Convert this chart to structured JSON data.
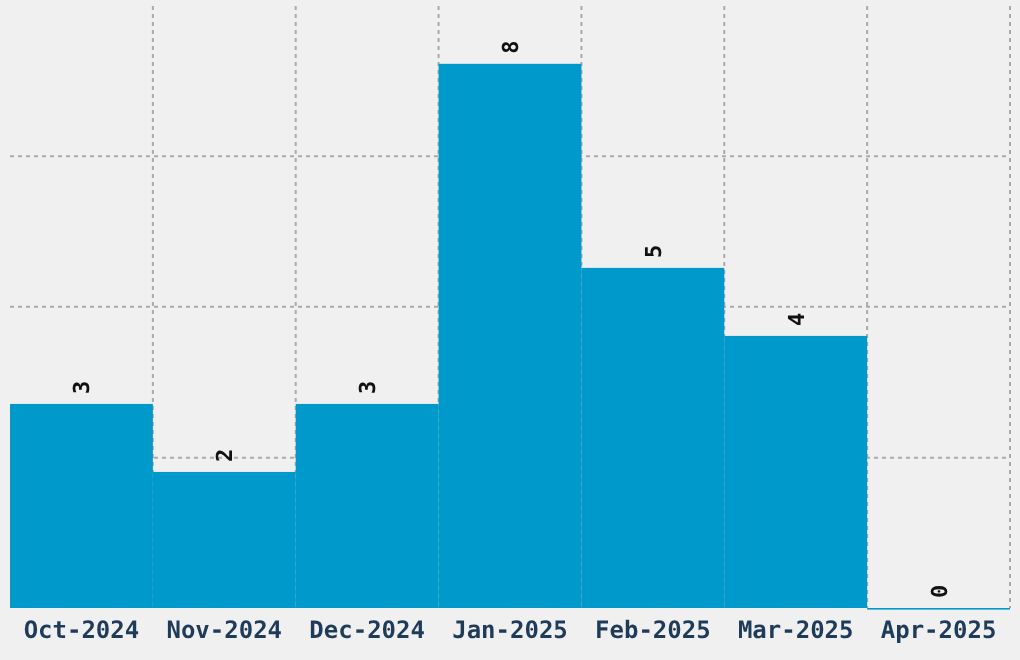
{
  "chart_data": {
    "type": "bar",
    "categories": [
      "Oct-2024",
      "Nov-2024",
      "Dec-2024",
      "Jan-2025",
      "Feb-2025",
      "Mar-2025",
      "Apr-2025"
    ],
    "values": [
      3,
      2,
      3,
      8,
      5,
      4,
      0
    ],
    "color": "#0099cc",
    "ylim": [
      0,
      8.85
    ],
    "yticks": [
      {
        "value": 2.21,
        "label": null
      },
      {
        "value": 4.43,
        "label": null
      },
      {
        "value": 6.64,
        "label": null
      }
    ],
    "tick_labels": "x",
    "grid": true,
    "data_labels": true
  }
}
